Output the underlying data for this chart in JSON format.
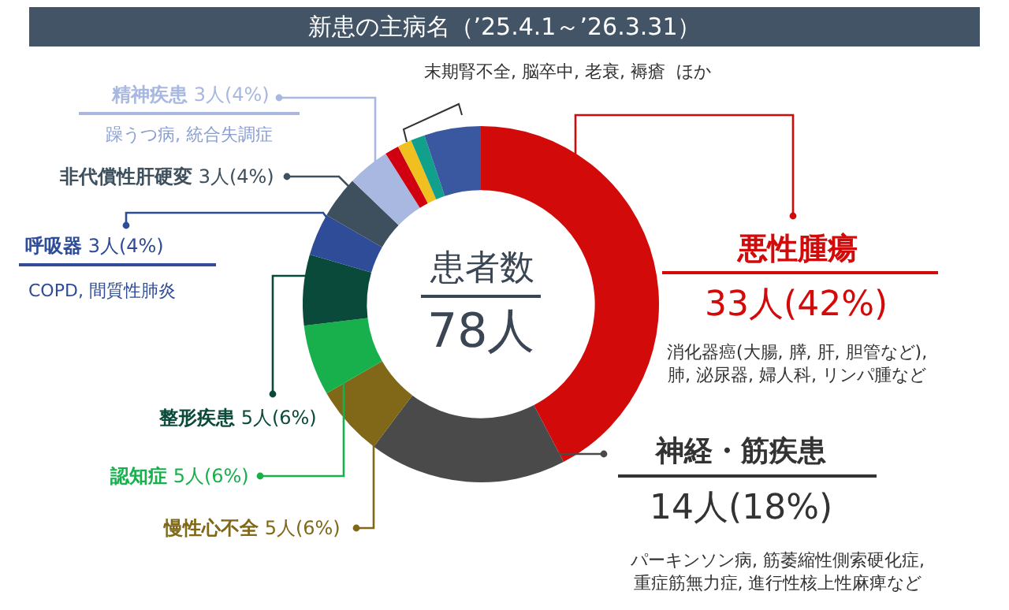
{
  "chart_data": {
    "type": "donut",
    "title": "新患の主病名（’25.4.1～’26.3.31）",
    "categories": [
      "悪性腫瘍",
      "神経・筋疾患",
      "慢性心不全",
      "認知症",
      "整形疾患",
      "呼吸器",
      "非代償性肝硬変",
      "精神疾患",
      null,
      null,
      null,
      null
    ],
    "values": [
      33,
      14,
      5,
      5,
      5,
      3,
      3,
      3,
      1,
      1,
      1,
      4
    ],
    "value_labels": [
      "33人(42%)",
      "14人(18%)",
      "5人(6%)",
      "5人(6%)",
      "5人(6%)",
      "3人(4%)",
      "3人(4%)",
      "3人(4%)",
      null,
      null,
      null,
      null
    ],
    "colors": [
      "#d20a0a",
      "#4a4a4a",
      "#806818",
      "#18b04c",
      "#0a4a3a",
      "#2e4c98",
      "#3e505e",
      "#a8b8e0",
      "#d00010",
      "#f0c020",
      "#10a08c",
      "#3a58a0"
    ],
    "annotations": [
      "患者数",
      "78人",
      "消化器癌(大腸, 膵, 肝, 胆管など),\n肺, 泌尿器, 婦人科, リンパ腫など",
      "パーキンソン病, 筋萎縮性側索硬化症,\n重症筋無力症, 進行性核上性麻痺など",
      "COPD, 間質性肺炎",
      "躁うつ病, 統合失調症",
      "末期腎不全, 脳卒中, 老衰, 褥瘡  ほか"
    ]
  }
}
